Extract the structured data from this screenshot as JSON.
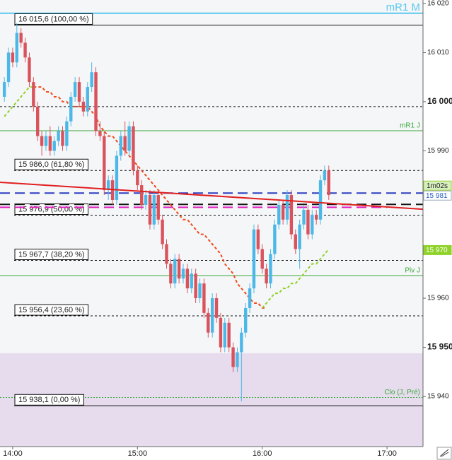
{
  "chart_data": {
    "type": "candlestick",
    "up_color": "#4cb8e8",
    "down_color": "#d9535c",
    "xlim": [
      833.9,
      1037.3
    ],
    "ylim": [
      15929.8,
      16020.7
    ],
    "xticks": [
      {
        "value": 840,
        "label": "14:00"
      },
      {
        "value": 900,
        "label": "15:00"
      },
      {
        "value": 960,
        "label": "16:00"
      },
      {
        "value": 1020,
        "label": "17:00"
      }
    ],
    "yticks": [
      {
        "value": 16020,
        "label": "16 020"
      },
      {
        "value": 16010,
        "label": "16 010"
      },
      {
        "value": 16000,
        "label": "16 000",
        "bold": true
      },
      {
        "value": 15990,
        "label": "15 990"
      },
      {
        "value": 15960,
        "label": "15 960"
      },
      {
        "value": 15950,
        "label": "15 950",
        "bold": true
      },
      {
        "value": 15940,
        "label": "15 940"
      }
    ],
    "x": [
      836,
      838,
      840,
      842,
      844,
      846,
      848,
      850,
      852,
      854,
      856,
      858,
      860,
      862,
      864,
      866,
      868,
      870,
      872,
      874,
      876,
      878,
      880,
      882,
      884,
      886,
      888,
      890,
      892,
      894,
      896,
      898,
      900,
      902,
      904,
      906,
      908,
      910,
      912,
      914,
      916,
      918,
      920,
      922,
      924,
      926,
      928,
      930,
      932,
      934,
      936,
      938,
      940,
      942,
      944,
      946,
      948,
      950,
      952,
      954,
      956,
      958,
      960,
      962,
      964,
      966,
      968,
      970,
      972,
      974,
      976,
      978,
      980,
      982,
      984,
      986,
      988,
      990,
      992
    ],
    "open": [
      16001,
      16004,
      16010,
      16008,
      16014,
      16012,
      16009,
      16004,
      15999,
      15993,
      15991,
      15993,
      15990,
      15992,
      15994,
      15991,
      15996,
      16001,
      16004,
      16000,
      15998,
      16003,
      16006,
      15994,
      15993,
      15982,
      15984,
      15980,
      15989,
      15993,
      15990,
      15995,
      15986,
      15983,
      15979,
      15981,
      15975,
      15981,
      15976,
      15971,
      15967,
      15963,
      15968,
      15964,
      15966,
      15962,
      15965,
      15960,
      15963,
      15957,
      15953,
      15960,
      15956,
      15950,
      15955,
      15950,
      15946,
      15949,
      15953,
      15958,
      15962,
      15974,
      15970,
      15966,
      15963,
      15969,
      15975,
      15979,
      15976,
      15981,
      15973,
      15970,
      15975,
      15978,
      15973,
      15977,
      15976,
      15984,
      15986
    ],
    "high": [
      16005,
      16011,
      16011,
      16016,
      16015,
      16013,
      16010,
      16005,
      16000,
      15994,
      15994,
      15995,
      15993,
      15995,
      15995,
      15997,
      16002,
      16005,
      16005,
      16001,
      16004,
      16008,
      16007,
      15996,
      15994,
      15985,
      15985,
      15990,
      15994,
      15996,
      15996,
      15996,
      15987,
      15984,
      15982,
      15982,
      15982,
      15982,
      15977,
      15972,
      15968,
      15969,
      15969,
      15967,
      15967,
      15966,
      15966,
      15964,
      15964,
      15958,
      15961,
      15961,
      15957,
      15956,
      15956,
      15951,
      15950,
      15954,
      15959,
      15963,
      15975,
      15975,
      15971,
      15967,
      15970,
      15976,
      15980,
      15980,
      15982,
      15982,
      15974,
      15976,
      15979,
      15979,
      15978,
      15978,
      15985,
      15987,
      15987
    ],
    "low": [
      16000,
      16003,
      16007,
      16007,
      16011,
      16008,
      16003,
      15998,
      15992,
      15989,
      15990,
      15989,
      15989,
      15991,
      15990,
      15990,
      15995,
      16000,
      15999,
      15997,
      15997,
      16002,
      15993,
      15992,
      15981,
      15980,
      15979,
      15979,
      15988,
      15989,
      15989,
      15985,
      15982,
      15978,
      15978,
      15974,
      15974,
      15975,
      15970,
      15966,
      15962,
      15962,
      15963,
      15963,
      15961,
      15961,
      15959,
      15959,
      15956,
      15952,
      15952,
      15955,
      15949,
      15949,
      15949,
      15945,
      15945,
      15939,
      15952,
      15957,
      15961,
      15969,
      15965,
      15962,
      15962,
      15968,
      15974,
      15975,
      15975,
      15972,
      15969,
      15966,
      15974,
      15972,
      15972,
      15975,
      15975,
      15983,
      15980
    ],
    "close": [
      16004,
      16010,
      16008,
      16014,
      16012,
      16009,
      16004,
      15999,
      15993,
      15991,
      15993,
      15990,
      15992,
      15994,
      15991,
      15996,
      16001,
      16004,
      16000,
      15998,
      16003,
      16006,
      15994,
      15993,
      15982,
      15984,
      15980,
      15989,
      15993,
      15990,
      15995,
      15986,
      15983,
      15979,
      15981,
      15975,
      15981,
      15976,
      15971,
      15967,
      15963,
      15968,
      15964,
      15966,
      15962,
      15965,
      15960,
      15963,
      15957,
      15953,
      15960,
      15956,
      15950,
      15955,
      15950,
      15946,
      15949,
      15953,
      15958,
      15962,
      15974,
      15970,
      15966,
      15963,
      15969,
      15975,
      15979,
      15976,
      15981,
      15973,
      15970,
      15975,
      15978,
      15973,
      15977,
      15976,
      15984,
      15986,
      15981
    ],
    "moving_averages": [
      {
        "color": "#f04a1a",
        "values": [
          null,
          null,
          null,
          null,
          null,
          null,
          null,
          16003,
          16003,
          16003,
          16002,
          16002,
          16001,
          16001,
          16000,
          16000,
          15999,
          15999,
          15999,
          15999,
          15999,
          15998,
          15997,
          15995,
          15994,
          15993,
          15993,
          15992,
          15991,
          15990,
          15989,
          15988,
          15987,
          15986,
          15985,
          15984,
          15983,
          15982,
          15981,
          15980,
          15979,
          15978,
          15977,
          15976,
          15976,
          15975,
          15974,
          15973,
          15973,
          15972,
          15971,
          15970,
          15969,
          15967,
          15966,
          15965,
          15963,
          15962,
          15961,
          15960,
          15959,
          15959,
          15958,
          15958,
          null,
          null,
          null,
          null,
          null,
          null,
          null,
          null,
          null,
          null,
          null,
          null,
          null,
          null,
          null
        ]
      },
      {
        "color": "#8fd22a",
        "values": [
          15997,
          15998,
          15999,
          16000,
          16001,
          16002,
          16003,
          16003,
          null,
          null,
          null,
          null,
          null,
          null,
          null,
          null,
          null,
          null,
          null,
          null,
          null,
          null,
          null,
          null,
          null,
          null,
          null,
          null,
          null,
          null,
          null,
          null,
          null,
          null,
          null,
          null,
          null,
          null,
          null,
          null,
          null,
          null,
          null,
          null,
          null,
          null,
          null,
          null,
          null,
          null,
          null,
          null,
          null,
          null,
          null,
          null,
          null,
          null,
          null,
          null,
          null,
          null,
          15958,
          15959,
          15960,
          15961,
          15961,
          15962,
          15962,
          15963,
          15963,
          15964,
          15965,
          15966,
          15967,
          15967,
          15968,
          15969,
          15970
        ]
      }
    ],
    "zone": {
      "top": 15948.8,
      "color": "#e6dced"
    },
    "fib_levels": [
      {
        "value": 16015.6,
        "label": "16 015,6 (100,00 %)",
        "style": "solid"
      },
      {
        "value": 15999,
        "label": null,
        "style": "dashed"
      },
      {
        "value": 15986.0,
        "label": "15 986,0 (61,80 %)",
        "style": "dashed"
      },
      {
        "value": 15976.9,
        "label": "15 976,9 (50,00 %)",
        "style": "dashed"
      },
      {
        "value": 15967.7,
        "label": "15 967,7 (38,20 %)",
        "style": "dashed"
      },
      {
        "value": 15956.4,
        "label": "15 956,4 (23,60 %)",
        "style": "dashed"
      },
      {
        "value": 15938.1,
        "label": "15 938,1 (0,00 %)",
        "style": "solid"
      }
    ],
    "pivot_levels": [
      {
        "value": 16018,
        "label": "mR1 M",
        "color": "#5bc8ef",
        "style": "solid"
      },
      {
        "value": 15994.1,
        "label": "mR1 J",
        "color": "#3aa83a",
        "style": "solid"
      },
      {
        "value": 15964.6,
        "label": "Piv J",
        "color": "#3aa83a",
        "style": "solid"
      },
      {
        "value": 15939.8,
        "label": "Clo (J, Pré)",
        "color": "#3aa83a",
        "style": "dotted"
      }
    ],
    "lines": [
      {
        "value": 15981.4,
        "color": "#2a3cc0",
        "style": "longdash"
      },
      {
        "value": 15979.1,
        "color": "#111111",
        "style": "longdash"
      },
      {
        "value": 15978.5,
        "color": "#e020c0",
        "style": "longdash",
        "x_end": 1020
      }
    ],
    "trendline": {
      "x": [
        833.9,
        1037.3
      ],
      "y": [
        15983.6,
        15978.1
      ],
      "color": "#e02020"
    },
    "countdown": "1m02s",
    "price_tags": [
      {
        "value": 15981.4,
        "label": "15 981",
        "color": "#2a5cc0",
        "background": "#ffffff"
      },
      {
        "value": 15970.3,
        "label": "15 970",
        "color": "#ffffff",
        "background": "#8fd22a"
      }
    ]
  }
}
